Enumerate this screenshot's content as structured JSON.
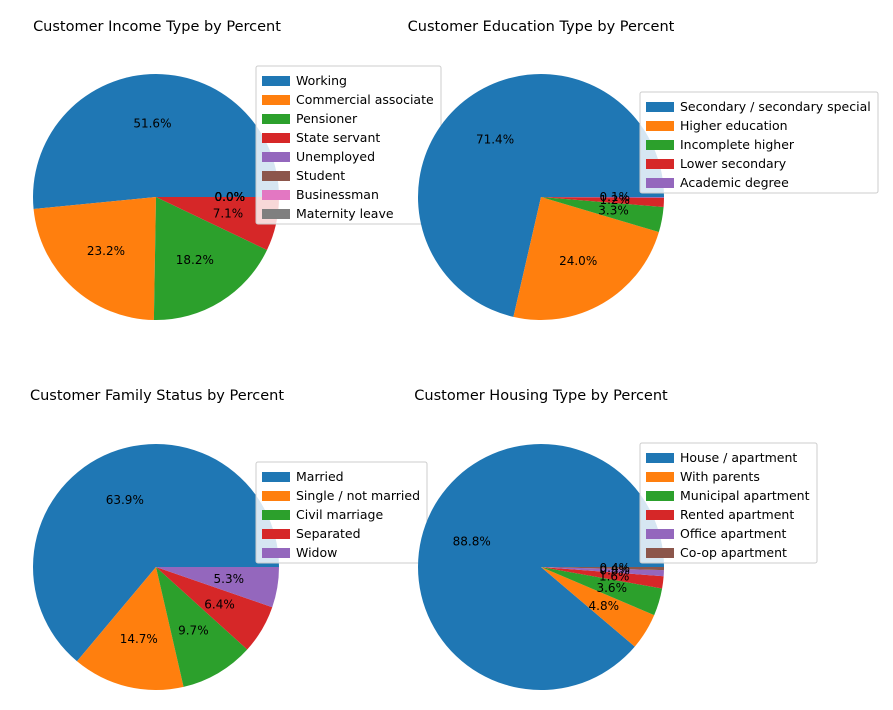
{
  "chart_data": [
    {
      "type": "pie",
      "title": "Customer Income Type by Percent",
      "labels": [
        "Working",
        "Commercial associate",
        "Pensioner",
        "State servant",
        "Unemployed",
        "Student",
        "Businessman",
        "Maternity leave"
      ],
      "values": [
        51.6,
        23.2,
        18.2,
        7.1,
        0.0,
        0.0,
        0.0,
        0.0
      ],
      "pct_labels": [
        "51.6%",
        "23.2%",
        "18.2%",
        "7.1%",
        "0.0%",
        "0.0%",
        "0.0%",
        "0.0%"
      ],
      "colors": [
        "#1f77b4",
        "#ff7f0e",
        "#2ca02c",
        "#d62728",
        "#9467bd",
        "#8c564b",
        "#e377c2",
        "#7f7f7f"
      ],
      "legend_position": "upper-right"
    },
    {
      "type": "pie",
      "title": "Customer Education Type by Percent",
      "labels": [
        "Secondary / secondary special",
        "Higher education",
        "Incomplete higher",
        "Lower secondary",
        "Academic degree"
      ],
      "values": [
        71.4,
        24.0,
        3.3,
        1.2,
        0.1
      ],
      "pct_labels": [
        "71.4%",
        "24.0%",
        "3.3%",
        "1.2%",
        "0.1%"
      ],
      "colors": [
        "#1f77b4",
        "#ff7f0e",
        "#2ca02c",
        "#d62728",
        "#9467bd"
      ],
      "legend_position": "upper-right"
    },
    {
      "type": "pie",
      "title": "Customer Family Status by Percent",
      "labels": [
        "Married",
        "Single / not married",
        "Civil marriage",
        "Separated",
        "Widow"
      ],
      "values": [
        63.9,
        14.7,
        9.7,
        6.4,
        5.3
      ],
      "pct_labels": [
        "63.9%",
        "14.7%",
        "9.7%",
        "6.4%",
        "5.3%"
      ],
      "colors": [
        "#1f77b4",
        "#ff7f0e",
        "#2ca02c",
        "#d62728",
        "#9467bd"
      ],
      "legend_position": "upper-right"
    },
    {
      "type": "pie",
      "title": "Customer Housing Type by Percent",
      "labels": [
        "House / apartment",
        "With parents",
        "Municipal apartment",
        "Rented apartment",
        "Office apartment",
        "Co-op apartment"
      ],
      "values": [
        88.8,
        4.8,
        3.6,
        1.6,
        0.8,
        0.4
      ],
      "pct_labels": [
        "88.8%",
        "4.8%",
        "3.6%",
        "1.6%",
        "0.8%",
        "0.4%"
      ],
      "colors": [
        "#1f77b4",
        "#ff7f0e",
        "#2ca02c",
        "#d62728",
        "#9467bd",
        "#8c564b"
      ],
      "legend_position": "upper-right"
    }
  ]
}
